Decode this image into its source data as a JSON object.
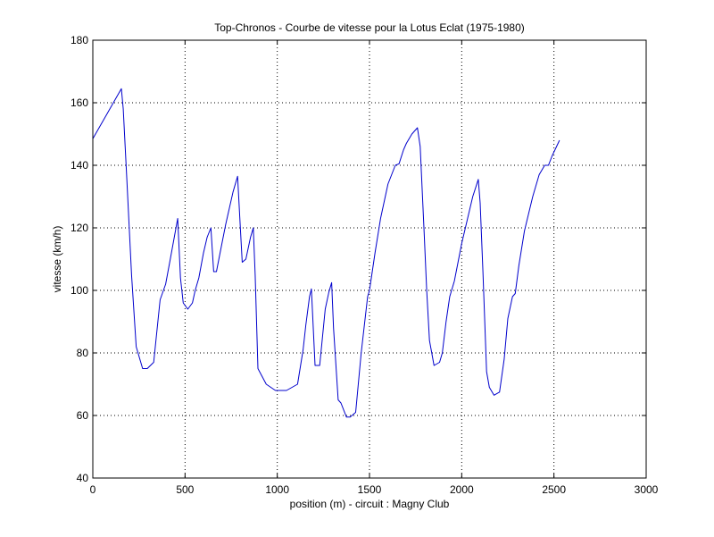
{
  "chart_data": {
    "type": "line",
    "title": "Top-Chronos - Courbe de vitesse pour la Lotus Eclat (1975-1980)",
    "xlabel": "position (m) - circuit : Magny Club",
    "ylabel": "vitesse (km/h)",
    "xlim": [
      0,
      3000
    ],
    "ylim": [
      40,
      180
    ],
    "xticks": [
      0,
      500,
      1000,
      1500,
      2000,
      2500,
      3000
    ],
    "yticks": [
      40,
      60,
      80,
      100,
      120,
      140,
      160,
      180
    ],
    "xtick_labels": [
      "0",
      "500",
      "1000",
      "1500",
      "2000",
      "2500",
      "3000"
    ],
    "ytick_labels": [
      "40",
      "60",
      "80",
      "100",
      "120",
      "140",
      "160",
      "180"
    ],
    "grid": true,
    "series_color": "#0000cc",
    "x": [
      0,
      155,
      165,
      185,
      210,
      235,
      270,
      295,
      330,
      365,
      395,
      420,
      460,
      475,
      490,
      515,
      540,
      555,
      575,
      600,
      620,
      640,
      655,
      670,
      690,
      720,
      760,
      785,
      800,
      810,
      830,
      855,
      870,
      880,
      895,
      940,
      990,
      1000,
      1050,
      1110,
      1140,
      1155,
      1175,
      1185,
      1205,
      1230,
      1260,
      1280,
      1295,
      1305,
      1330,
      1345,
      1375,
      1395,
      1425,
      1455,
      1490,
      1500,
      1530,
      1560,
      1600,
      1640,
      1660,
      1685,
      1700,
      1730,
      1760,
      1775,
      1795,
      1810,
      1825,
      1850,
      1880,
      1895,
      1915,
      1935,
      1960,
      2000,
      2060,
      2090,
      2100,
      2115,
      2135,
      2150,
      2175,
      2205,
      2230,
      2250,
      2275,
      2290,
      2310,
      2340,
      2385,
      2420,
      2450,
      2470,
      2490,
      2530
    ],
    "y": [
      148.5,
      164.5,
      158,
      135,
      105,
      82,
      75,
      75,
      77,
      97,
      102,
      110,
      123,
      104,
      96,
      94,
      96,
      100,
      104,
      112,
      117,
      120,
      106,
      106,
      112,
      121,
      131.5,
      136.5,
      120,
      109,
      110,
      117,
      120,
      105,
      75,
      70,
      68,
      68,
      68,
      70,
      81,
      89,
      98,
      100.5,
      76,
      76,
      94,
      99.5,
      102.5,
      88,
      65,
      64,
      59.5,
      59.5,
      61,
      80,
      98,
      100,
      112,
      123,
      134,
      140,
      140.5,
      145,
      147,
      150,
      152,
      146,
      120,
      100,
      84,
      76,
      77,
      80,
      90,
      98,
      103,
      115,
      130,
      135.5,
      128,
      106,
      74,
      69,
      66.5,
      67.5,
      78,
      91,
      98,
      99,
      108,
      119,
      130,
      137,
      140,
      140,
      143,
      148
    ]
  }
}
